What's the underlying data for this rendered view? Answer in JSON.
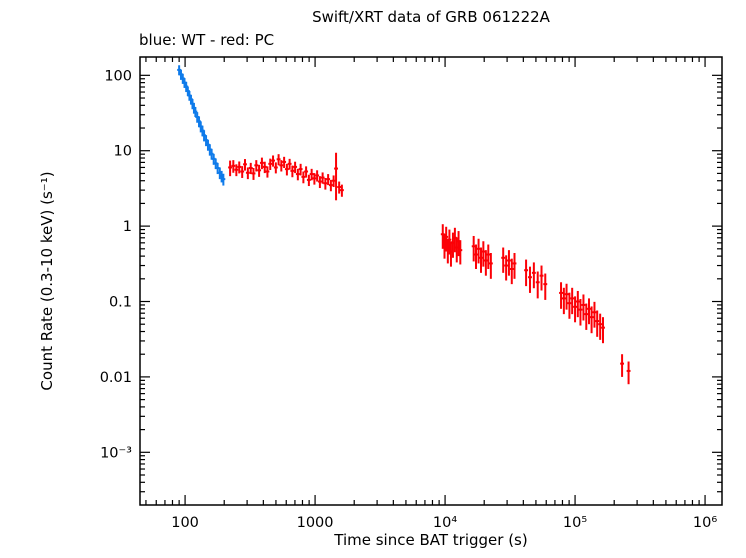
{
  "chart_data": {
    "type": "scatter",
    "title": "Swift/XRT data of GRB 061222A",
    "subtitle": "blue: WT - red: PC",
    "xlabel": "Time since BAT trigger (s)",
    "ylabel": "Count Rate (0.3-10 keV) (s⁻¹)",
    "xscale": "log",
    "yscale": "log",
    "xlim": [
      45,
      1350000
    ],
    "ylim": [
      0.0002,
      175
    ],
    "grid": false,
    "legend_position": "top-left-above-axes",
    "frame_color": "#000000",
    "xticks": [
      {
        "v": 100,
        "label": "100"
      },
      {
        "v": 1000,
        "label": "1000"
      },
      {
        "v": 10000,
        "label": "10⁴"
      },
      {
        "v": 100000,
        "label": "10⁵"
      },
      {
        "v": 1000000,
        "label": "10⁶"
      }
    ],
    "yticks": [
      {
        "v": 100,
        "label": "100"
      },
      {
        "v": 10,
        "label": "10"
      },
      {
        "v": 1,
        "label": "1"
      },
      {
        "v": 0.1,
        "label": "0.1"
      },
      {
        "v": 0.01,
        "label": "0.01"
      },
      {
        "v": 0.001,
        "label": "10⁻³"
      }
    ],
    "series": [
      {
        "name": "WT",
        "color": "#0f7bea",
        "marker": "errorbar",
        "points": [
          [
            90,
            118,
            18
          ],
          [
            93,
            103,
            16
          ],
          [
            96,
            91,
            14
          ],
          [
            99,
            80,
            12
          ],
          [
            102,
            71,
            11
          ],
          [
            105,
            62,
            9
          ],
          [
            108,
            54,
            8
          ],
          [
            111,
            48,
            7
          ],
          [
            114,
            42,
            6.5
          ],
          [
            117,
            37,
            6
          ],
          [
            120,
            33,
            5
          ],
          [
            124,
            28,
            4.5
          ],
          [
            128,
            24.5,
            4
          ],
          [
            132,
            21,
            3.5
          ],
          [
            136,
            18.5,
            3
          ],
          [
            140,
            16,
            2.7
          ],
          [
            145,
            13.8,
            2.3
          ],
          [
            150,
            12,
            2
          ],
          [
            155,
            10.4,
            1.8
          ],
          [
            160,
            9.1,
            1.5
          ],
          [
            166,
            7.8,
            1.3
          ],
          [
            172,
            6.8,
            1.1
          ],
          [
            178,
            5.9,
            1
          ],
          [
            185,
            5.1,
            0.9
          ],
          [
            191,
            4.6,
            0.8
          ],
          [
            197,
            4.2,
            0.75
          ]
        ]
      },
      {
        "name": "PC",
        "color": "#fb0006",
        "marker": "errorbar",
        "points": [
          [
            222,
            6.0,
            1.4
          ],
          [
            235,
            6.3,
            1.2
          ],
          [
            248,
            5.6,
            1.0
          ],
          [
            261,
            6.1,
            1.1
          ],
          [
            275,
            5.3,
            0.95
          ],
          [
            289,
            6.6,
            1.15
          ],
          [
            304,
            5.1,
            0.9
          ],
          [
            320,
            5.9,
            1.0
          ],
          [
            336,
            5.0,
            0.9
          ],
          [
            353,
            6.4,
            1.1
          ],
          [
            371,
            5.5,
            1.0
          ],
          [
            390,
            6.9,
            1.2
          ],
          [
            410,
            6.1,
            1.05
          ],
          [
            430,
            5.3,
            0.9
          ],
          [
            452,
            6.7,
            1.15
          ],
          [
            475,
            7.4,
            1.25
          ],
          [
            499,
            6.0,
            1.0
          ],
          [
            524,
            7.7,
            1.3
          ],
          [
            550,
            6.4,
            1.1
          ],
          [
            578,
            7.1,
            1.2
          ],
          [
            607,
            5.7,
            1.0
          ],
          [
            637,
            6.7,
            1.1
          ],
          [
            669,
            5.4,
            0.95
          ],
          [
            702,
            6.1,
            1.05
          ],
          [
            737,
            4.9,
            0.85
          ],
          [
            774,
            5.7,
            1.0
          ],
          [
            813,
            4.5,
            0.8
          ],
          [
            853,
            5.3,
            0.9
          ],
          [
            896,
            4.1,
            0.7
          ],
          [
            941,
            4.9,
            0.85
          ],
          [
            988,
            4.3,
            0.75
          ],
          [
            1037,
            4.7,
            0.8
          ],
          [
            1089,
            3.9,
            0.7
          ],
          [
            1143,
            4.4,
            0.75
          ],
          [
            1200,
            3.7,
            0.65
          ],
          [
            1260,
            4.2,
            0.7
          ],
          [
            1323,
            3.5,
            0.6
          ],
          [
            1389,
            4.0,
            0.7
          ],
          [
            1450,
            5.8,
            3.6
          ],
          [
            1532,
            3.3,
            0.6
          ],
          [
            1608,
            3.0,
            0.55
          ],
          [
            9600,
            0.78,
            0.28
          ],
          [
            9900,
            0.58,
            0.21
          ],
          [
            10200,
            0.72,
            0.26
          ],
          [
            10500,
            0.5,
            0.18
          ],
          [
            10800,
            0.66,
            0.24
          ],
          [
            11100,
            0.46,
            0.17
          ],
          [
            11500,
            0.6,
            0.22
          ],
          [
            11900,
            0.7,
            0.25
          ],
          [
            12300,
            0.52,
            0.19
          ],
          [
            12700,
            0.63,
            0.23
          ],
          [
            13100,
            0.48,
            0.17
          ],
          [
            16600,
            0.54,
            0.2
          ],
          [
            17300,
            0.42,
            0.15
          ],
          [
            18100,
            0.5,
            0.18
          ],
          [
            18900,
            0.38,
            0.14
          ],
          [
            19700,
            0.46,
            0.17
          ],
          [
            20600,
            0.35,
            0.13
          ],
          [
            21500,
            0.42,
            0.15
          ],
          [
            22500,
            0.32,
            0.12
          ],
          [
            28000,
            0.38,
            0.14
          ],
          [
            29500,
            0.3,
            0.11
          ],
          [
            31000,
            0.35,
            0.13
          ],
          [
            32600,
            0.27,
            0.1
          ],
          [
            34200,
            0.32,
            0.12
          ],
          [
            42000,
            0.26,
            0.1
          ],
          [
            45000,
            0.21,
            0.08
          ],
          [
            48200,
            0.24,
            0.09
          ],
          [
            51600,
            0.18,
            0.07
          ],
          [
            55200,
            0.22,
            0.08
          ],
          [
            59000,
            0.17,
            0.065
          ],
          [
            78000,
            0.13,
            0.05
          ],
          [
            82000,
            0.11,
            0.042
          ],
          [
            86000,
            0.125,
            0.047
          ],
          [
            90500,
            0.095,
            0.036
          ],
          [
            95000,
            0.11,
            0.042
          ],
          [
            100000,
            0.085,
            0.032
          ],
          [
            105000,
            0.1,
            0.038
          ],
          [
            110000,
            0.078,
            0.03
          ],
          [
            116000,
            0.09,
            0.034
          ],
          [
            122000,
            0.068,
            0.026
          ],
          [
            128000,
            0.08,
            0.03
          ],
          [
            134000,
            0.062,
            0.024
          ],
          [
            141000,
            0.072,
            0.027
          ],
          [
            148000,
            0.055,
            0.021
          ],
          [
            156000,
            0.05,
            0.019
          ],
          [
            164000,
            0.045,
            0.017
          ],
          [
            230000,
            0.015,
            0.005
          ],
          [
            258000,
            0.012,
            0.004
          ]
        ]
      }
    ]
  }
}
